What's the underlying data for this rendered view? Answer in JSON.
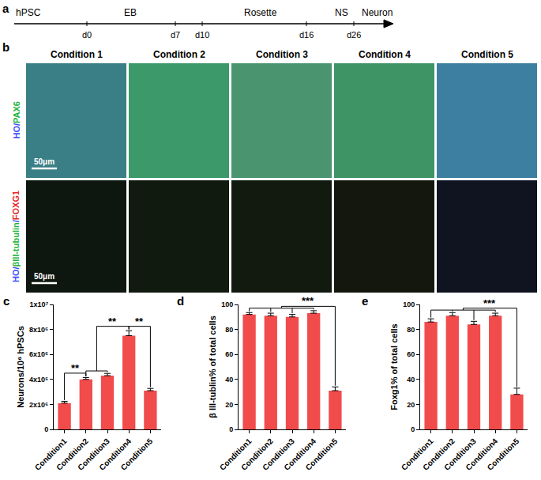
{
  "timeline": {
    "panel_label": "a",
    "stages": [
      "hPSC",
      "EB",
      "Rosette",
      "NS",
      "Neuron"
    ],
    "days": [
      "d0",
      "d7",
      "d10",
      "d16",
      "d26"
    ]
  },
  "images": {
    "panel_label": "b",
    "columns": [
      "Condition 1",
      "Condition 2",
      "Condition 3",
      "Condition 4",
      "Condition 5"
    ],
    "rows": [
      {
        "separator": "/",
        "stains": [
          {
            "text": "HO",
            "color": "#3b4dff"
          },
          {
            "text": "PAX6",
            "color": "#22b33a"
          }
        ]
      },
      {
        "separator": "/",
        "stains": [
          {
            "text": "HO",
            "color": "#3b4dff"
          },
          {
            "text": "βIII-tubulin",
            "color": "#22b33a"
          },
          {
            "text": "FOXG1",
            "color": "#e8242a"
          }
        ]
      }
    ],
    "scale_bar": "50μm"
  },
  "chart_data": [
    {
      "type": "bar",
      "panel_label": "c",
      "y_label": "Neurons/10⁶ hPSCs",
      "categories": [
        "Condition1",
        "Condition2",
        "Condition3",
        "Condition4",
        "Condition5"
      ],
      "values": [
        2100000,
        4000000,
        4300000,
        7500000,
        3100000
      ],
      "errors": [
        150000,
        150000,
        180000,
        400000,
        180000
      ],
      "color": "#f24b4b",
      "ylim": [
        0,
        10000000
      ],
      "yticks": [
        0,
        {
          "value": 2000000,
          "label": "2x10⁶"
        },
        {
          "value": 4000000,
          "label": "4x10⁶"
        },
        {
          "value": 6000000,
          "label": "6x10⁶"
        },
        {
          "value": 8000000,
          "label": "8x10⁶"
        },
        {
          "value": 10000000,
          "label": "1x10⁷"
        }
      ],
      "significance": [
        {
          "from": [
            "Condition1"
          ],
          "to": [
            "Condition2"
          ],
          "label": "**"
        },
        {
          "from": [
            "Condition2",
            "Condition3"
          ],
          "to": [
            "Condition4"
          ],
          "label": "**"
        },
        {
          "from": [
            "Condition4"
          ],
          "to": [
            "Condition5"
          ],
          "label": "**"
        }
      ]
    },
    {
      "type": "bar",
      "panel_label": "d",
      "y_label": "β III-tublin% of total cells",
      "categories": [
        "Condition1",
        "Condition2",
        "Condition3",
        "Condition4",
        "Condition5"
      ],
      "values": [
        92,
        91,
        90,
        93,
        31
      ],
      "errors": [
        1.5,
        2,
        2,
        2,
        3
      ],
      "color": "#f24b4b",
      "ylim": [
        0,
        100
      ],
      "yticks": [
        0,
        20,
        40,
        60,
        80,
        100
      ],
      "significance": [
        {
          "from": [
            "Condition1",
            "Condition2",
            "Condition3",
            "Condition4"
          ],
          "to": [
            "Condition5"
          ],
          "label": "***"
        }
      ]
    },
    {
      "type": "bar",
      "panel_label": "e",
      "y_label": "Foxg1% of total cells",
      "categories": [
        "Condition1",
        "Condition2",
        "Condition3",
        "Condition4",
        "Condition5"
      ],
      "values": [
        86,
        91,
        84,
        91,
        28
      ],
      "errors": [
        2.5,
        2.5,
        2.5,
        2,
        5
      ],
      "color": "#f24b4b",
      "ylim": [
        0,
        100
      ],
      "yticks": [
        0,
        20,
        40,
        60,
        80,
        100
      ],
      "significance": [
        {
          "from": [
            "Condition1",
            "Condition2",
            "Condition3",
            "Condition4"
          ],
          "to": [
            "Condition5"
          ],
          "label": "***"
        }
      ]
    }
  ]
}
